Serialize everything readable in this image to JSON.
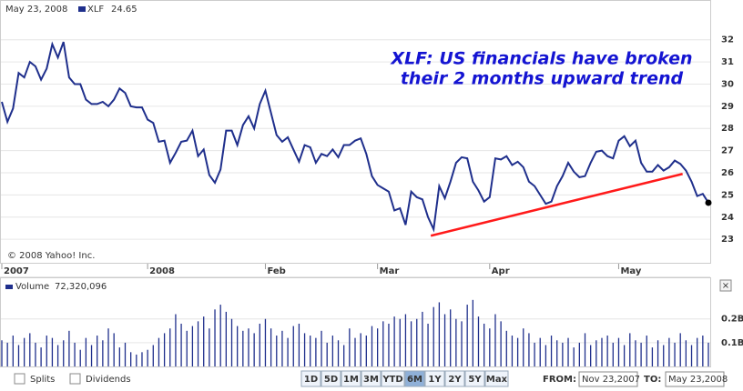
{
  "header": {
    "date": "May 23, 2008"
  },
  "chart_data": [
    {
      "type": "line",
      "series": [
        {
          "name": "XLF",
          "legend_value": "24.65",
          "color": "#1f2f8c",
          "values": [
            29.2,
            28.3,
            28.9,
            30.5,
            30.3,
            31.0,
            30.8,
            30.2,
            30.7,
            31.8,
            31.2,
            31.9,
            30.3,
            30.0,
            30.0,
            29.3,
            29.1,
            29.1,
            29.2,
            29.0,
            29.3,
            29.8,
            29.6,
            29.0,
            28.95,
            28.95,
            28.4,
            28.25,
            27.4,
            27.45,
            26.45,
            26.9,
            27.4,
            27.45,
            27.9,
            26.75,
            27.05,
            25.9,
            25.55,
            26.15,
            27.9,
            27.9,
            27.25,
            28.15,
            28.55,
            28.0,
            29.1,
            29.7,
            28.7,
            27.7,
            27.4,
            27.6,
            27.05,
            26.5,
            27.25,
            27.15,
            26.45,
            26.85,
            26.75,
            27.05,
            26.7,
            27.25,
            27.25,
            27.45,
            27.55,
            26.85,
            25.85,
            25.45,
            25.3,
            25.15,
            24.3,
            24.4,
            23.65,
            25.15,
            24.9,
            24.8,
            24.0,
            23.45,
            25.4,
            24.85,
            25.6,
            26.45,
            26.7,
            26.65,
            25.6,
            25.2,
            24.7,
            24.9,
            26.65,
            26.6,
            26.75,
            26.35,
            26.5,
            26.25,
            25.6,
            25.4,
            25.0,
            24.6,
            24.7,
            25.4,
            25.85,
            26.45,
            26.05,
            25.8,
            25.85,
            26.45,
            26.95,
            27.0,
            26.75,
            26.65,
            27.45,
            27.65,
            27.2,
            27.45,
            26.45,
            26.05,
            26.05,
            26.35,
            26.1,
            26.25,
            26.55,
            26.4,
            26.1,
            25.6,
            24.95,
            25.05,
            24.65
          ]
        }
      ],
      "categories": [
        "2007",
        null,
        null,
        null,
        null,
        null,
        null,
        null,
        null,
        null,
        null,
        null,
        null,
        null,
        null,
        null,
        null,
        null,
        null,
        null,
        null,
        null,
        null,
        null,
        null,
        null,
        "2008",
        null,
        null,
        null,
        null,
        null,
        null,
        null,
        null,
        null,
        null,
        null,
        null,
        null,
        null,
        null,
        null,
        null,
        null,
        null,
        null,
        "Feb",
        null,
        null,
        null,
        null,
        null,
        null,
        null,
        null,
        null,
        null,
        null,
        null,
        null,
        null,
        null,
        null,
        null,
        null,
        null,
        "Mar",
        null,
        null,
        null,
        null,
        null,
        null,
        null,
        null,
        null,
        null,
        null,
        null,
        null,
        null,
        null,
        null,
        null,
        null,
        null,
        "Apr",
        null,
        null,
        null,
        null,
        null,
        null,
        null,
        null,
        null,
        null,
        null,
        null,
        null,
        null,
        null,
        null,
        null,
        null,
        null,
        null,
        null,
        null,
        "May",
        null,
        null,
        null,
        null,
        null,
        null,
        null,
        null,
        null,
        null,
        null,
        null,
        null,
        null,
        null,
        null
      ],
      "ylim": [
        21.9,
        33.3
      ],
      "yticks": [
        23,
        24,
        25,
        26,
        27,
        28,
        29,
        30,
        31,
        32
      ],
      "grid": true,
      "annotation": [
        "XLF: US financials have broken",
        "their 2 months upward trend"
      ],
      "trendline": {
        "x": [
          76.5,
          121.4
        ],
        "values": [
          23.16,
          25.95
        ],
        "color": "#ff1a1a"
      },
      "credit": "© 2008 Yahoo! Inc."
    },
    {
      "type": "bar",
      "series": [
        {
          "name": "Volume",
          "legend_value": "72,320,096",
          "color": "#1f2f8c",
          "values": [
            0.11,
            0.1,
            0.13,
            0.09,
            0.12,
            0.14,
            0.1,
            0.08,
            0.13,
            0.12,
            0.09,
            0.11,
            0.15,
            0.1,
            0.07,
            0.12,
            0.09,
            0.13,
            0.11,
            0.16,
            0.14,
            0.08,
            0.1,
            0.06,
            0.05,
            0.06,
            0.07,
            0.09,
            0.12,
            0.14,
            0.16,
            0.22,
            0.18,
            0.15,
            0.17,
            0.19,
            0.21,
            0.16,
            0.24,
            0.26,
            0.23,
            0.2,
            0.17,
            0.15,
            0.16,
            0.14,
            0.18,
            0.2,
            0.16,
            0.13,
            0.15,
            0.12,
            0.17,
            0.18,
            0.14,
            0.13,
            0.12,
            0.15,
            0.1,
            0.13,
            0.11,
            0.09,
            0.16,
            0.12,
            0.14,
            0.13,
            0.17,
            0.16,
            0.19,
            0.18,
            0.21,
            0.2,
            0.22,
            0.19,
            0.2,
            0.23,
            0.18,
            0.25,
            0.27,
            0.22,
            0.24,
            0.2,
            0.19,
            0.26,
            0.28,
            0.21,
            0.18,
            0.16,
            0.22,
            0.19,
            0.15,
            0.13,
            0.12,
            0.16,
            0.14,
            0.1,
            0.12,
            0.09,
            0.13,
            0.11,
            0.1,
            0.12,
            0.08,
            0.1,
            0.14,
            0.09,
            0.11,
            0.12,
            0.13,
            0.1,
            0.12,
            0.09,
            0.14,
            0.11,
            0.1,
            0.13,
            0.08,
            0.11,
            0.09,
            0.12,
            0.1,
            0.14,
            0.11,
            0.09,
            0.12,
            0.13,
            0.1
          ]
        }
      ],
      "ylim": [
        0,
        0.31
      ],
      "yticks": [
        {
          "value": 0.1,
          "label": "0.1B"
        },
        {
          "value": 0.2,
          "label": "0.2B"
        }
      ],
      "close": "×"
    }
  ],
  "controls": {
    "checkboxes": [
      "Splits",
      "Dividends"
    ],
    "ranges": [
      "1D",
      "5D",
      "1M",
      "3M",
      "YTD",
      "6M",
      "1Y",
      "2Y",
      "5Y",
      "Max"
    ],
    "selected_range": 5,
    "from_label": "FROM:",
    "from": "Nov 23,2007",
    "to_label": "TO:",
    "to": "May 23,2008"
  }
}
